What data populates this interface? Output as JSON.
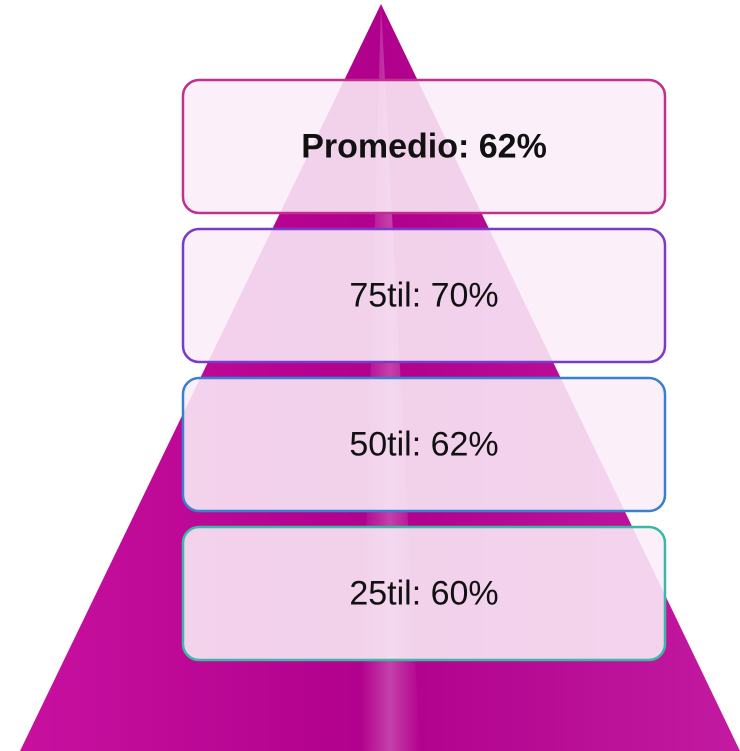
{
  "pyramid": {
    "items": [
      {
        "label": "Promedio: 62%"
      },
      {
        "label": "75til: 70%"
      },
      {
        "label": "50til: 62%"
      },
      {
        "label": "25til: 60%"
      }
    ]
  }
}
